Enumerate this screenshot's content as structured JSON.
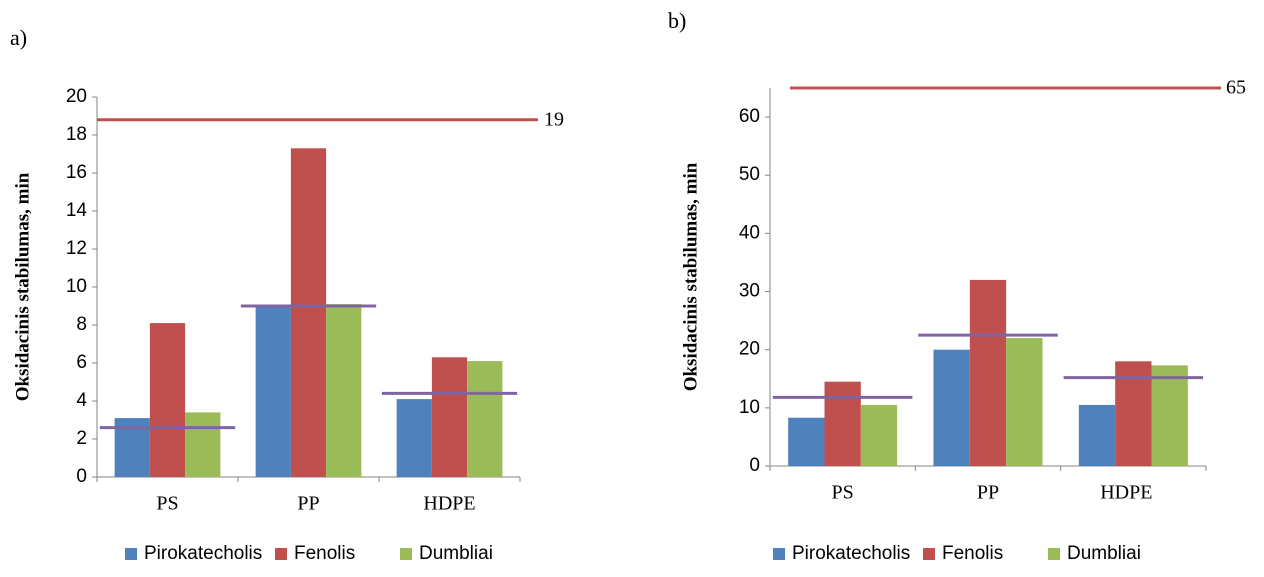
{
  "colors": {
    "Pirokatecholis": "#4f81bd",
    "Fenolis": "#c0504d",
    "Dumbliai": "#9bbb59",
    "reference_top": "#c0504d",
    "reference_category": "#8064a2"
  },
  "chart_data": [
    {
      "panel": "a)",
      "type": "bar",
      "categories": [
        "PS",
        "PP",
        "HDPE"
      ],
      "series": [
        {
          "name": "Pirokatecholis",
          "values": [
            3.1,
            9.0,
            4.1
          ]
        },
        {
          "name": "Fenolis",
          "values": [
            8.1,
            17.3,
            6.3
          ]
        },
        {
          "name": "Dumbliai",
          "values": [
            3.4,
            9.1,
            6.1
          ]
        }
      ],
      "reference_lines": [
        {
          "value": 18.8,
          "scope": "all",
          "label": "19"
        },
        {
          "value": 2.6,
          "scope": "PS"
        },
        {
          "value": 9.0,
          "scope": "PP"
        },
        {
          "value": 4.4,
          "scope": "HDPE"
        }
      ],
      "ylabel": "Oksidacinis stabilumas, min",
      "xlabel": "",
      "ylim": [
        0,
        20
      ],
      "yticks": [
        0,
        2,
        4,
        6,
        8,
        10,
        12,
        14,
        16,
        18,
        20
      ],
      "legend": "bottom",
      "grid": false
    },
    {
      "panel": "b)",
      "type": "bar",
      "categories": [
        "PS",
        "PP",
        "HDPE"
      ],
      "series": [
        {
          "name": "Pirokatecholis",
          "values": [
            8.3,
            20.0,
            10.5
          ]
        },
        {
          "name": "Fenolis",
          "values": [
            14.5,
            32.0,
            18.0
          ]
        },
        {
          "name": "Dumbliai",
          "values": [
            10.5,
            22.0,
            17.3
          ]
        }
      ],
      "reference_lines": [
        {
          "value": 65,
          "scope": "all",
          "label": "65"
        },
        {
          "value": 11.8,
          "scope": "PS"
        },
        {
          "value": 22.5,
          "scope": "PP"
        },
        {
          "value": 15.2,
          "scope": "HDPE"
        }
      ],
      "ylabel": "Oksidacinis stabilumas, min",
      "xlabel": "",
      "ylim": [
        0,
        65
      ],
      "yticks": [
        0,
        10,
        20,
        30,
        40,
        50,
        60
      ],
      "legend": "bottom",
      "grid": false
    }
  ]
}
